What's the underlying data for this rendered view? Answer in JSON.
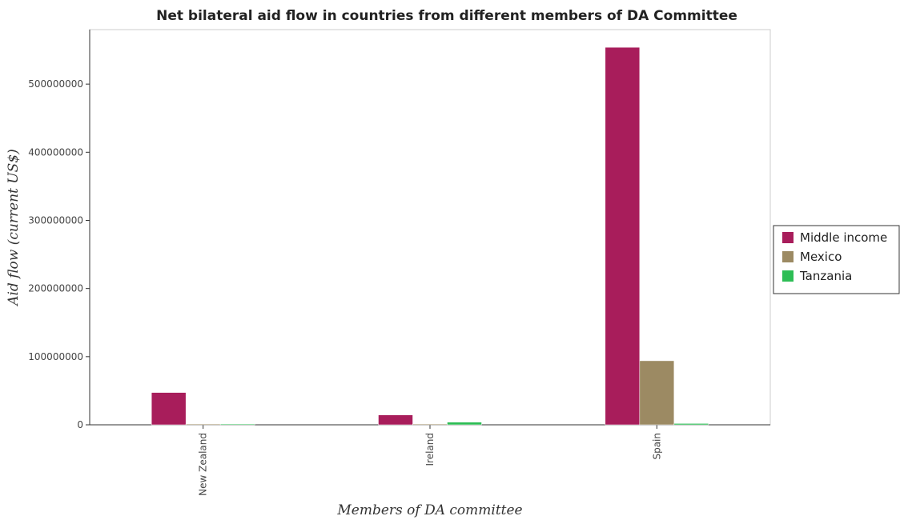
{
  "chart_data": {
    "type": "bar",
    "title": "Net bilateral aid flow in countries from different members of DA Committee",
    "xlabel": "Members of DA committee",
    "ylabel": "Aid flow (current US$)",
    "categories": [
      "New Zealand",
      "Ireland",
      "Spain"
    ],
    "series": [
      {
        "name": "Middle income",
        "color": "#a81d5b",
        "values": [
          47400000,
          14500000,
          554000000
        ]
      },
      {
        "name": "Mexico",
        "color": "#9c8a63",
        "values": [
          20000,
          40000,
          94000000
        ]
      },
      {
        "name": "Tanzania",
        "color": "#2dbd55",
        "values": [
          60000,
          3900000,
          1900000
        ]
      }
    ],
    "ylim": [
      0,
      580000000
    ],
    "yticks": [
      0,
      100000000,
      200000000,
      300000000,
      400000000,
      500000000
    ],
    "ytick_labels": [
      "0",
      "100000000",
      "200000000",
      "300000000",
      "400000000",
      "500000000"
    ],
    "grid": false,
    "legend_position": "right"
  }
}
